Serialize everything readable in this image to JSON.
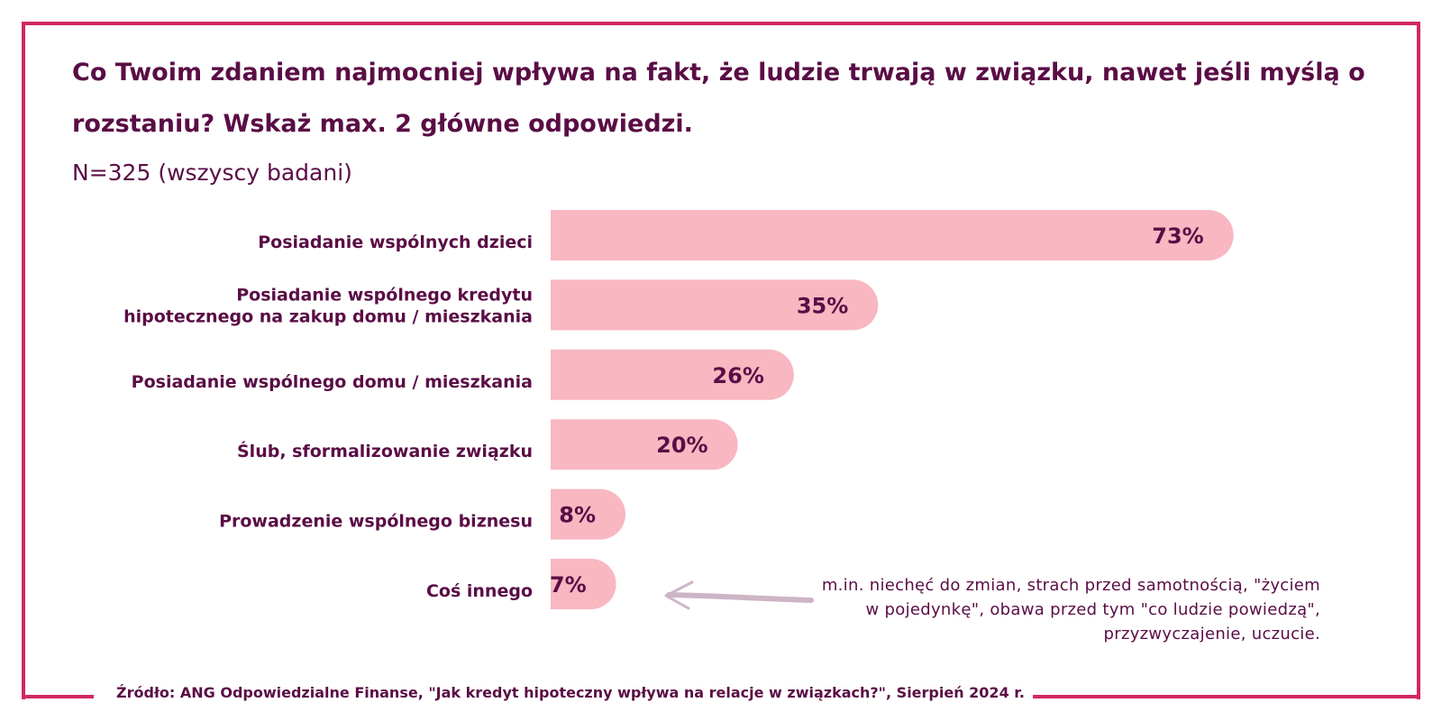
{
  "title": "Co Twoim zdaniem najmocniej wpływa na fakt, że ludzie trwają w związku, nawet jeśli myślą o rozstaniu? Wskaż max. 2 główne odpowiedzi.",
  "subtitle": "N=325 (wszyscy badani)",
  "note": "m.in. niechęć do zmian, strach przed samotnością, \"życiem w pojedynkę\", obawa przed tym \"co ludzie powiedzą\", przyzwyczajenie, uczucie.",
  "source": "Źródło: ANG Odpowiedzialne Finanse, \"Jak kredyt hipoteczny wpływa na relacje w związkach?\", Sierpień 2024 r.",
  "colors": {
    "frame": "#d3285f",
    "bar": "#f8b7c1",
    "text": "#5a0d45",
    "arrow": "#cdb5c6"
  },
  "chart_data": {
    "type": "bar",
    "orientation": "horizontal",
    "categories": [
      [
        "Posiadanie wspólnych dzieci"
      ],
      [
        "Posiadanie wspólnego kredytu",
        "hipotecznego na zakup domu / mieszkania"
      ],
      [
        "Posiadanie wspólnego domu / mieszkania"
      ],
      [
        "Ślub, sformalizowanie związku"
      ],
      [
        "Prowadzenie wspólnego biznesu"
      ],
      [
        "Coś innego"
      ]
    ],
    "values": [
      73,
      35,
      26,
      20,
      8,
      7
    ],
    "value_labels": [
      "73%",
      "35%",
      "26%",
      "20%",
      "8%",
      "7%"
    ],
    "unit": "%",
    "grid": false,
    "legend": "none"
  }
}
